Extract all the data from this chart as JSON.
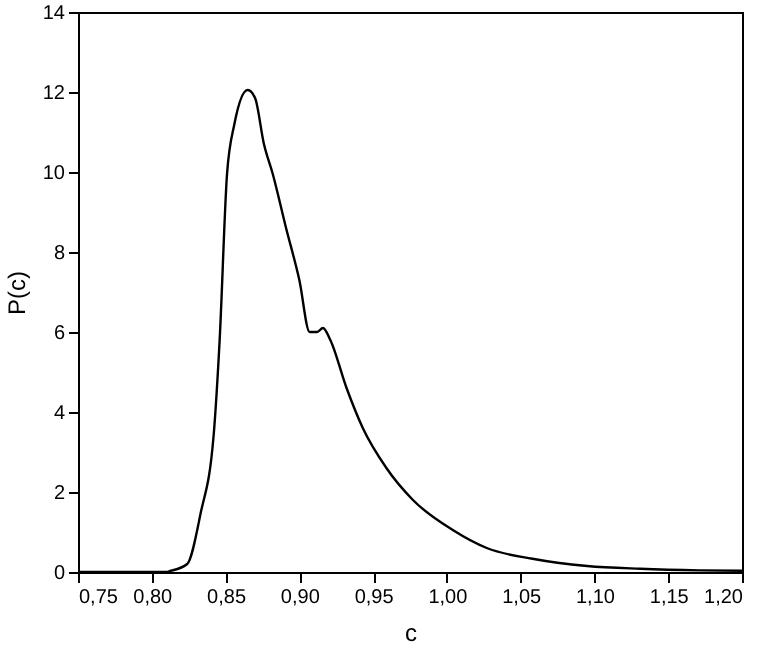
{
  "chart_data": {
    "type": "line",
    "xlabel": "c",
    "ylabel": "P(c)",
    "x": [
      0.75,
      0.81,
      0.812,
      0.824,
      0.833,
      0.842,
      0.846,
      0.851,
      0.856,
      0.865,
      0.87,
      0.876,
      0.882,
      0.891,
      0.9,
      0.907,
      0.912,
      0.916,
      0.921,
      0.932,
      0.943,
      0.959,
      0.977,
      1.004,
      1.027,
      1.058,
      1.095,
      1.131,
      1.171,
      1.2
    ],
    "series": [
      {
        "color": "#000000",
        "values": [
          0,
          0,
          0.02,
          0.2,
          1.45,
          3.45,
          5.8,
          9.95,
          11.2,
          12.05,
          11.85,
          10.7,
          9.95,
          8.6,
          7.3,
          6.0,
          6.0,
          6.1,
          5.8,
          4.6,
          3.6,
          2.6,
          1.8,
          1.05,
          0.6,
          0.33,
          0.15,
          0.08,
          0.04,
          0.03
        ]
      }
    ],
    "xlim": [
      0.75,
      1.2
    ],
    "ylim": [
      0,
      14
    ],
    "xticks": [
      {
        "value": 0.75,
        "label": "0,75"
      },
      {
        "value": 0.8,
        "label": "0,80"
      },
      {
        "value": 0.85,
        "label": "0,85"
      },
      {
        "value": 0.9,
        "label": "0,90"
      },
      {
        "value": 0.95,
        "label": "0,95"
      },
      {
        "value": 1.0,
        "label": "1,00"
      },
      {
        "value": 1.05,
        "label": "1,05"
      },
      {
        "value": 1.1,
        "label": "1,10"
      },
      {
        "value": 1.15,
        "label": "1,15"
      },
      {
        "value": 1.2,
        "label": "1,20"
      }
    ],
    "yticks": [
      0,
      2,
      4,
      6,
      8,
      10,
      12,
      14
    ],
    "grid": false,
    "line_style": "solid",
    "marker": "none"
  }
}
